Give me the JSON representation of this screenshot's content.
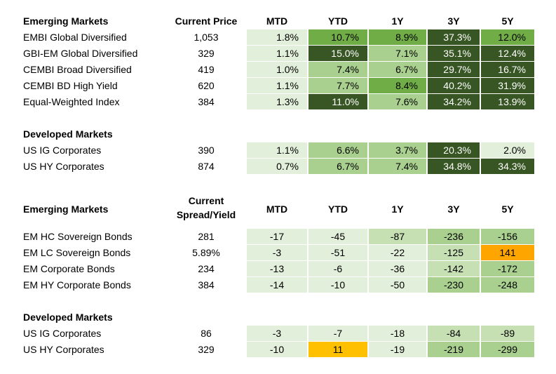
{
  "colors": {
    "very_light_green": "#e2efda",
    "light_green": "#a9d08e",
    "green": "#70ad47",
    "dark_green": "#375623",
    "orange": "#ffa500",
    "amber": "#ffc000"
  },
  "table1": {
    "header": {
      "label": "Emerging Markets",
      "price": "Current Price",
      "cols": [
        "MTD",
        "YTD",
        "1Y",
        "3Y",
        "5Y"
      ]
    },
    "rows": [
      {
        "label": "EMBI Global Diversified",
        "value": "1,053",
        "cells": [
          "1.8%",
          "10.7%",
          "8.9%",
          "37.3%",
          "12.0%"
        ]
      },
      {
        "label": "GBI-EM Global Diversified",
        "value": "329",
        "cells": [
          "1.1%",
          "15.0%",
          "7.1%",
          "35.1%",
          "12.4%"
        ]
      },
      {
        "label": "CEMBI Broad Diversified",
        "value": "419",
        "cells": [
          "1.0%",
          "7.4%",
          "6.7%",
          "29.7%",
          "16.7%"
        ]
      },
      {
        "label": "CEMBI BD High Yield",
        "value": "620",
        "cells": [
          "1.1%",
          "7.7%",
          "8.4%",
          "40.2%",
          "31.9%"
        ]
      },
      {
        "label": "Equal-Weighted Index",
        "value": "384",
        "cells": [
          "1.3%",
          "11.0%",
          "7.6%",
          "34.2%",
          "13.9%"
        ]
      }
    ]
  },
  "table2": {
    "header": {
      "label": "Developed Markets"
    },
    "rows": [
      {
        "label": "US IG Corporates",
        "value": "390",
        "cells": [
          "1.1%",
          "6.6%",
          "3.7%",
          "20.3%",
          "2.0%"
        ]
      },
      {
        "label": "US HY Corporates",
        "value": "874",
        "cells": [
          "0.7%",
          "6.7%",
          "7.4%",
          "34.8%",
          "34.3%"
        ]
      }
    ]
  },
  "table3": {
    "header": {
      "label": "Emerging Markets",
      "spread_line1": "Current",
      "spread_line2": "Spread/Yield",
      "cols": [
        "MTD",
        "YTD",
        "1Y",
        "3Y",
        "5Y"
      ]
    },
    "rows": [
      {
        "label": "EM HC Sovereign Bonds",
        "value": "281",
        "cells": [
          "-17",
          "-45",
          "-87",
          "-236",
          "-156"
        ]
      },
      {
        "label": "EM LC Sovereign Bonds",
        "value": "5.89%",
        "cells": [
          "-3",
          "-51",
          "-22",
          "-125",
          "141"
        ]
      },
      {
        "label": "EM Corporate Bonds",
        "value": "234",
        "cells": [
          "-13",
          "-6",
          "-36",
          "-142",
          "-172"
        ]
      },
      {
        "label": "EM HY Corporate Bonds",
        "value": "384",
        "cells": [
          "-14",
          "-10",
          "-50",
          "-230",
          "-248"
        ]
      }
    ]
  },
  "table4": {
    "header": {
      "label": "Developed Markets"
    },
    "rows": [
      {
        "label": "US IG Corporates",
        "value": "86",
        "cells": [
          "-3",
          "-7",
          "-18",
          "-84",
          "-89"
        ]
      },
      {
        "label": "US HY Corporates",
        "value": "329",
        "cells": [
          "-10",
          "11",
          "-19",
          "-219",
          "-299"
        ]
      }
    ]
  }
}
